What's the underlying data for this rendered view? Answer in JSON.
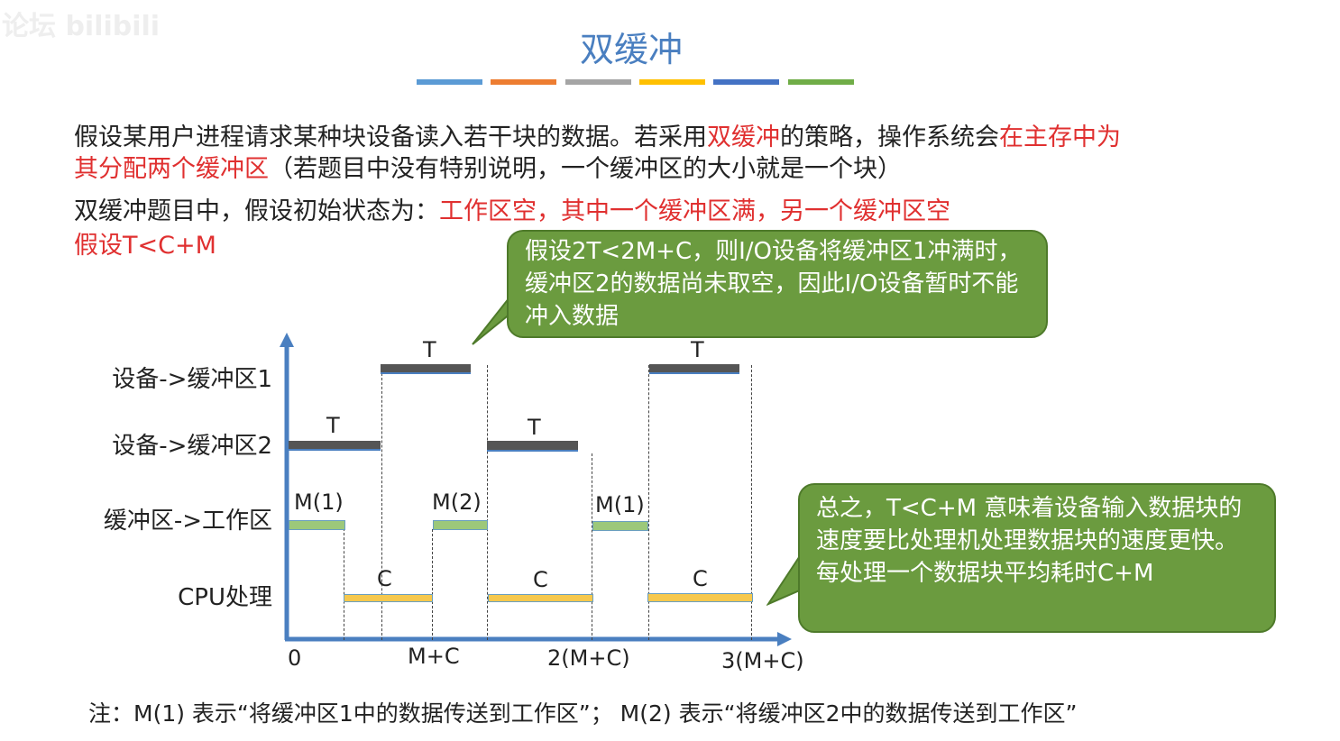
{
  "watermark": "论坛 bilibili",
  "title": "双缓冲",
  "title_color": "#4a7fc0",
  "strip_colors": [
    "#5b9bd5",
    "#ed7d31",
    "#a5a5a5",
    "#ffc000",
    "#4472c4",
    "#70ad47"
  ],
  "para1": {
    "a": "假设某用户进程请求某种块设备读入若干块的数据。若采用",
    "b": "双缓冲",
    "c": "的策略，操作系统会",
    "d": "在主存中为",
    "e": "其分配两个缓冲区",
    "f": "（若题目中没有特别说明，一个缓冲区的大小就是一个块）"
  },
  "para2": {
    "a": "双缓冲题目中，假设初始状态为：",
    "b": "工作区空，其中一个缓冲区满，另一个缓冲区空"
  },
  "para3": "假设T<C+M",
  "callout1": "假设2T<2M+C，则I/O设备将缓冲区1冲满时，缓冲区2的数据尚未取空，因此I/O设备暂时不能冲入数据",
  "callout2": "总之，T<C+M 意味着设备输入数据块的速度要比处理机处理数据块的速度更快。每处理一个数据块平均耗时C+M",
  "diagram": {
    "rows": [
      "设备->缓冲区1",
      "设备->缓冲区2",
      "缓冲区->工作区",
      "CPU处理"
    ],
    "bar_labels": {
      "t": "T",
      "m1": "M(1)",
      "m2": "M(2)",
      "c": "C"
    },
    "ticks": [
      "0",
      "M+C",
      "2(M+C)",
      "3(M+C)"
    ]
  },
  "note": "注：M(1) 表示“将缓冲区1中的数据传送到工作区”；  M(2) 表示“将缓冲区2中的数据传送到工作区”"
}
